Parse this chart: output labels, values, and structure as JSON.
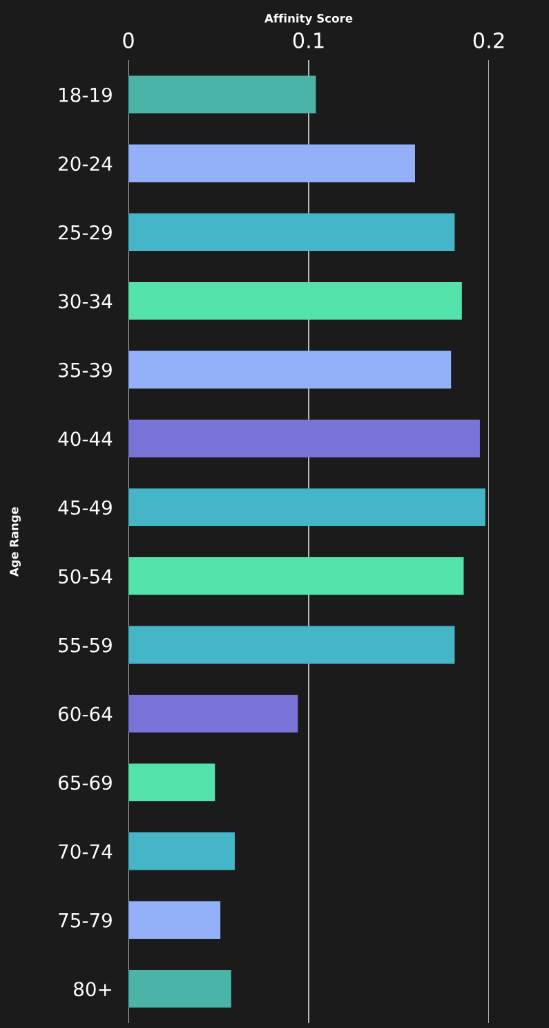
{
  "chart_data": {
    "type": "bar",
    "orientation": "horizontal",
    "xlabel": "Affinity Score",
    "ylabel": "Age Range",
    "categories": [
      "18-19",
      "20-24",
      "25-29",
      "30-34",
      "35-39",
      "40-44",
      "45-49",
      "50-54",
      "55-59",
      "60-64",
      "65-69",
      "70-74",
      "75-79",
      "80+"
    ],
    "values": [
      0.104,
      0.159,
      0.181,
      0.185,
      0.179,
      0.195,
      0.198,
      0.186,
      0.181,
      0.094,
      0.048,
      0.059,
      0.051,
      0.057
    ],
    "colors": [
      "#4ab4a8",
      "#94b0f9",
      "#45b6c8",
      "#54e2ab",
      "#94b0f9",
      "#7a73d8",
      "#45b6c8",
      "#54e2ab",
      "#45b6c8",
      "#7a73d8",
      "#54e2ab",
      "#45b6c8",
      "#94b0f9",
      "#4ab4a8"
    ],
    "xlim": [
      0,
      0.2
    ],
    "xticks": [
      0,
      0.1,
      0.2
    ],
    "grid": "x"
  }
}
